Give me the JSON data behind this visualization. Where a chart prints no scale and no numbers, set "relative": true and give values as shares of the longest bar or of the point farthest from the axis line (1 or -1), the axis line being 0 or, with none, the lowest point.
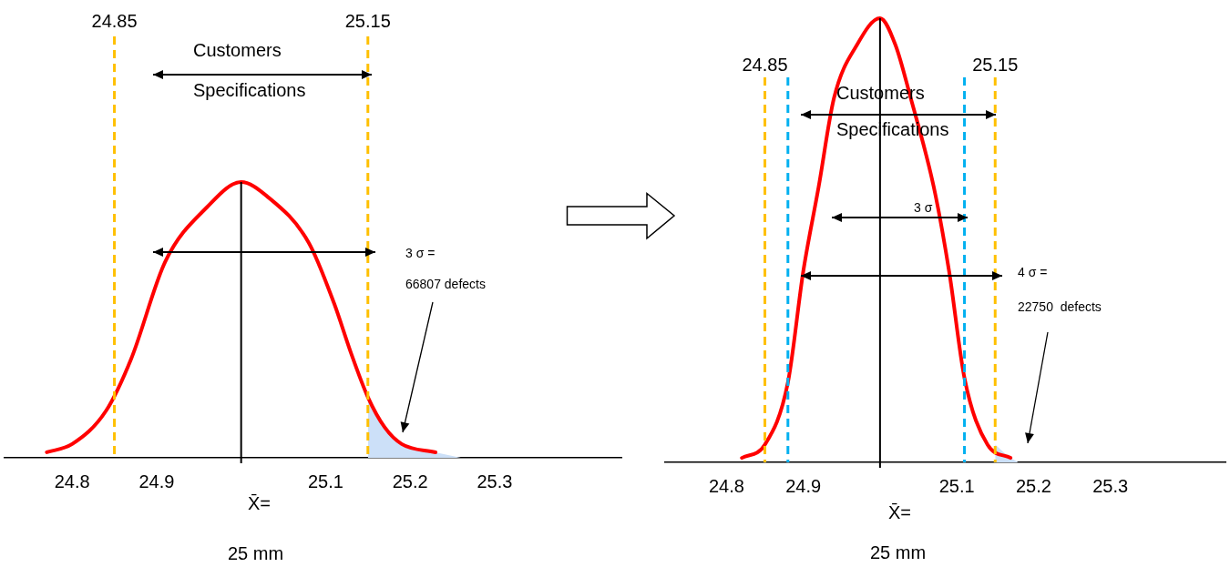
{
  "chart_data": [
    {
      "type": "line",
      "relative": true,
      "marker": "none",
      "xlim": [
        24.72,
        25.45
      ],
      "xticks": [
        24.8,
        24.9,
        25.1,
        25.2,
        25.3
      ],
      "series": [
        {
          "type": "line",
          "color": "#ff0000",
          "x": [
            24.77,
            24.8,
            24.84,
            24.87,
            24.91,
            24.96,
            25.0,
            25.03,
            25.08,
            25.11,
            25.13,
            25.15,
            25.17,
            25.19,
            25.23
          ],
          "values": [
            0.02,
            0.05,
            0.17,
            0.36,
            0.71,
            0.91,
            1,
            0.95,
            0.78,
            0.56,
            0.38,
            0.22,
            0.11,
            0.05,
            0.02
          ]
        },
        {
          "type": "area",
          "color": "#cce0f8",
          "x": [
            25.15,
            25.17,
            25.19,
            25.23,
            25.26
          ],
          "values": [
            0.22,
            0.11,
            0.05,
            0.02,
            0
          ]
        }
      ],
      "ref_lines": [
        {
          "axis": "x",
          "value": 24.85,
          "label": "24.85",
          "color": "#ffc000",
          "line_style": "dashed"
        },
        {
          "axis": "x",
          "value": 25.15,
          "label": "25.15",
          "color": "#ffc000",
          "line_style": "dashed"
        },
        {
          "axis": "x",
          "value": 25.0,
          "color": "#000000",
          "line_style": "solid"
        }
      ],
      "annotations": [
        "Customers",
        "Specifications",
        "3 σ =",
        "66807 defects",
        "X̄=",
        "25 mm"
      ]
    },
    {
      "type": "line",
      "relative": true,
      "marker": "none",
      "xlim": [
        24.72,
        25.45
      ],
      "xticks": [
        24.8,
        24.9,
        25.1,
        25.2,
        25.3
      ],
      "series": [
        {
          "type": "line",
          "color": "#ff0000",
          "x": [
            24.82,
            24.85,
            24.88,
            24.9,
            24.92,
            24.94,
            24.97,
            25.0,
            25.02,
            25.04,
            25.07,
            25.09,
            25.11,
            25.14,
            25.17
          ],
          "values": [
            0.01,
            0.04,
            0.18,
            0.43,
            0.62,
            0.82,
            0.94,
            1,
            0.94,
            0.82,
            0.62,
            0.43,
            0.19,
            0.04,
            0.01
          ]
        },
        {
          "type": "area",
          "color": "#cce0f8",
          "x": [
            25.15,
            25.17,
            25.18
          ],
          "values": [
            0.04,
            0.01,
            0
          ]
        }
      ],
      "ref_lines": [
        {
          "axis": "x",
          "value": 24.85,
          "label": "24.85",
          "color": "#ffc000",
          "line_style": "dashed"
        },
        {
          "axis": "x",
          "value": 25.15,
          "label": "25.15",
          "color": "#ffc000",
          "line_style": "dashed"
        },
        {
          "axis": "x",
          "value": 24.88,
          "color": "#00b0f0",
          "line_style": "dashed"
        },
        {
          "axis": "x",
          "value": 25.11,
          "color": "#00b0f0",
          "line_style": "dashed"
        },
        {
          "axis": "x",
          "value": 25.0,
          "color": "#000000",
          "line_style": "solid"
        }
      ],
      "annotations": [
        "Customers",
        "Specifications",
        "3 σ",
        "4 σ =",
        "22750  defects",
        "X̄=",
        "25 mm"
      ]
    }
  ]
}
